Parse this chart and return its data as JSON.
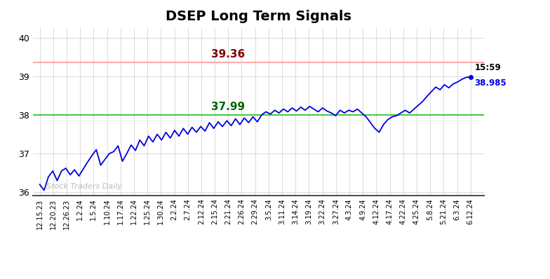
{
  "title": "DSEP Long Term Signals",
  "title_fontsize": 14,
  "title_fontweight": "bold",
  "watermark": "Stock Traders Daily",
  "resistance_level": 39.36,
  "support_level": 38.0,
  "resistance_color": "#ffaaaa",
  "support_color": "#44cc44",
  "resistance_label_color": "#880000",
  "support_label_color": "#006600",
  "resistance_label": "39.36",
  "support_label": "37.99",
  "line_color": "#0000dd",
  "last_price": 38.985,
  "last_time": "15:59",
  "last_price_color": "#0000dd",
  "last_time_color": "#000000",
  "ylim": [
    35.92,
    40.25
  ],
  "yticks": [
    36,
    37,
    38,
    39,
    40
  ],
  "background_color": "#ffffff",
  "grid_color": "#cccccc",
  "x_labels": [
    "12.15.23",
    "12.20.23",
    "12.26.23",
    "1.2.24",
    "1.5.24",
    "1.10.24",
    "1.17.24",
    "1.22.24",
    "1.25.24",
    "1.30.24",
    "2.2.24",
    "2.7.24",
    "2.12.24",
    "2.15.24",
    "2.21.24",
    "2.26.24",
    "2.29.24",
    "3.5.24",
    "3.11.24",
    "3.14.24",
    "3.19.24",
    "3.22.24",
    "3.27.24",
    "4.3.24",
    "4.9.24",
    "4.12.24",
    "4.17.24",
    "4.22.24",
    "4.25.24",
    "5.8.24",
    "5.21.24",
    "6.3.24",
    "6.12.24"
  ],
  "prices": [
    36.2,
    36.05,
    36.4,
    36.55,
    36.3,
    36.55,
    36.62,
    36.45,
    36.58,
    36.42,
    36.6,
    36.78,
    36.95,
    37.1,
    36.7,
    36.85,
    37.0,
    37.05,
    37.2,
    36.8,
    37.0,
    37.22,
    37.08,
    37.35,
    37.2,
    37.45,
    37.3,
    37.5,
    37.35,
    37.55,
    37.4,
    37.6,
    37.45,
    37.65,
    37.5,
    37.68,
    37.55,
    37.7,
    37.58,
    37.8,
    37.65,
    37.82,
    37.7,
    37.85,
    37.72,
    37.9,
    37.75,
    37.92,
    37.8,
    37.95,
    37.82,
    38.0,
    38.08,
    38.02,
    38.12,
    38.05,
    38.15,
    38.08,
    38.18,
    38.1,
    38.2,
    38.12,
    38.22,
    38.15,
    38.08,
    38.18,
    38.1,
    38.05,
    37.98,
    38.12,
    38.05,
    38.12,
    38.08,
    38.15,
    38.05,
    37.95,
    37.8,
    37.65,
    37.55,
    37.75,
    37.88,
    37.95,
    37.98,
    38.05,
    38.12,
    38.05,
    38.15,
    38.25,
    38.35,
    38.48,
    38.6,
    38.72,
    38.65,
    38.78,
    38.7,
    38.8,
    38.85,
    38.92,
    38.97,
    38.985
  ]
}
